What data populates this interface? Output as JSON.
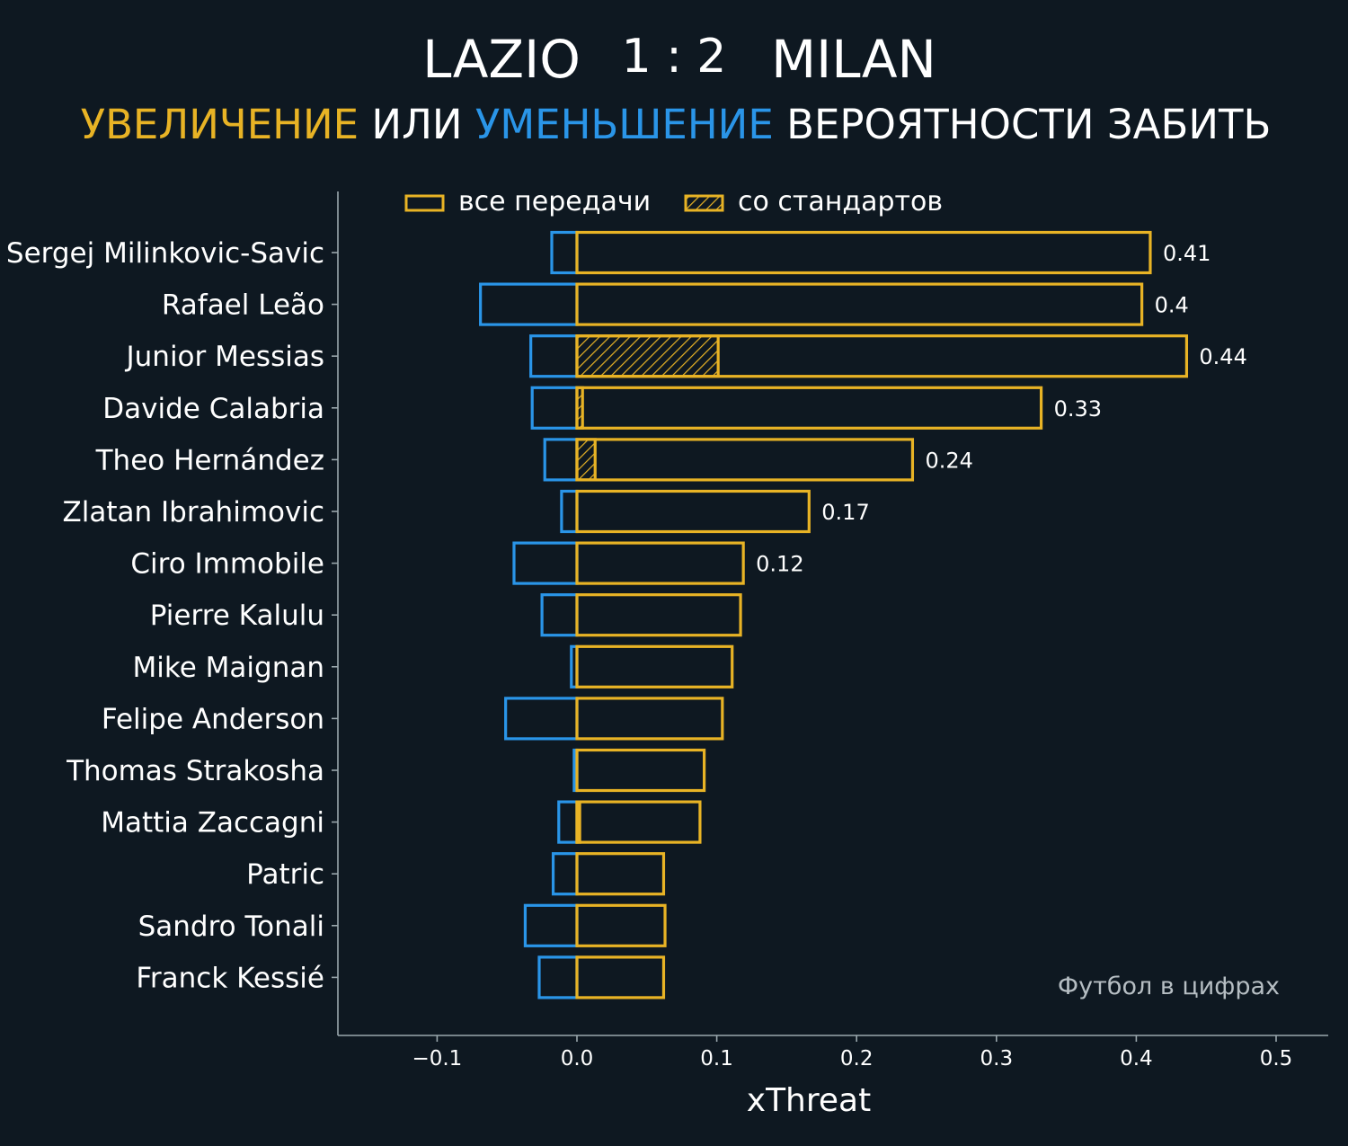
{
  "header": {
    "home_team": "LAZIO",
    "score": "1 : 2",
    "away_team": "MILAN",
    "subtitle_increase": "УВЕЛИЧЕНИЕ",
    "subtitle_or": "ИЛИ",
    "subtitle_decrease": "УМЕНЬШЕНИЕ",
    "subtitle_rest": "ВЕРОЯТНОСТИ ЗАБИТЬ"
  },
  "watermark": "Футбол в цифрах",
  "colors": {
    "background": "#0e1821",
    "increase": "#e8b325",
    "decrease": "#2a95e8",
    "text": "#ffffff",
    "axis": "#9aa7ad"
  },
  "chart_data": {
    "type": "bar",
    "orientation": "horizontal",
    "xlabel": "xThreat",
    "xlim": [
      -0.17,
      0.54
    ],
    "xticks": [
      -0.1,
      0.0,
      0.1,
      0.2,
      0.3,
      0.4,
      0.5
    ],
    "xtick_labels": [
      "−0.1",
      "0.0",
      "0.1",
      "0.2",
      "0.3",
      "0.4",
      "0.5"
    ],
    "legend": {
      "placement": "top",
      "all_passes": "все передачи",
      "set_pieces": "со стандартов"
    },
    "categories": [
      "Sergej Milinkovic-Savic",
      "Rafael Leão",
      "Junior Messias",
      "Davide Calabria",
      "Theo Hernández",
      "Zlatan Ibrahimovic",
      "Ciro Immobile",
      "Pierre Kalulu",
      "Mike Maignan",
      "Felipe Anderson",
      "Thomas Strakosha",
      "Mattia Zaccagni",
      "Patric",
      "Sandro Tonali",
      "Franck Kessié"
    ],
    "series": [
      {
        "name": "все передачи",
        "positive": [
          0.41,
          0.404,
          0.436,
          0.332,
          0.24,
          0.166,
          0.119,
          0.117,
          0.111,
          0.104,
          0.091,
          0.088,
          0.062,
          0.063,
          0.062
        ],
        "negative": [
          -0.018,
          -0.069,
          -0.033,
          -0.032,
          -0.023,
          -0.011,
          -0.045,
          -0.025,
          -0.004,
          -0.051,
          -0.002,
          -0.013,
          -0.017,
          -0.037,
          -0.027
        ]
      },
      {
        "name": "со стандартов",
        "positive": [
          0,
          0,
          0.101,
          0.004,
          0.013,
          0,
          0,
          0,
          0,
          0,
          0,
          0.002,
          0,
          0,
          0
        ]
      }
    ],
    "data_labels": [
      "0.41",
      "0.4",
      "0.44",
      "0.33",
      "0.24",
      "0.17",
      "0.12",
      "",
      "",
      "",
      "",
      "",
      "",
      "",
      ""
    ]
  }
}
